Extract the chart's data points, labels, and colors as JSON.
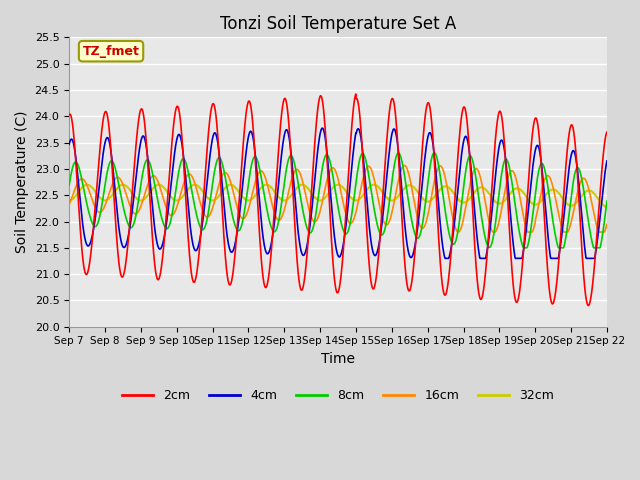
{
  "title": "Tonzi Soil Temperature Set A",
  "xlabel": "Time",
  "ylabel": "Soil Temperature (C)",
  "ylim": [
    20.0,
    25.5
  ],
  "yticks": [
    20.0,
    20.5,
    21.0,
    21.5,
    22.0,
    22.5,
    23.0,
    23.5,
    24.0,
    24.5,
    25.0,
    25.5
  ],
  "xtick_labels": [
    "Sep 7",
    "Sep 8",
    "Sep 9",
    "Sep 10",
    "Sep 11",
    "Sep 12",
    "Sep 13",
    "Sep 14",
    "Sep 15",
    "Sep 16",
    "Sep 17",
    "Sep 18",
    "Sep 19",
    "Sep 20",
    "Sep 21",
    "Sep 22"
  ],
  "annotation_text": "TZ_fmet",
  "annotation_box_color": "#ffffcc",
  "annotation_text_color": "#cc0000",
  "annotation_edge_color": "#999900",
  "lines": {
    "2cm": {
      "color": "#ff0000",
      "linewidth": 1.2
    },
    "4cm": {
      "color": "#0000cc",
      "linewidth": 1.2
    },
    "8cm": {
      "color": "#00cc00",
      "linewidth": 1.2
    },
    "16cm": {
      "color": "#ff8800",
      "linewidth": 1.2
    },
    "32cm": {
      "color": "#cccc00",
      "linewidth": 1.5
    }
  },
  "fig_bg_color": "#d8d8d8",
  "plot_bg_color": "#e8e8e8",
  "grid_color": "#ffffff",
  "legend_entries": [
    "2cm",
    "4cm",
    "8cm",
    "16cm",
    "32cm"
  ]
}
